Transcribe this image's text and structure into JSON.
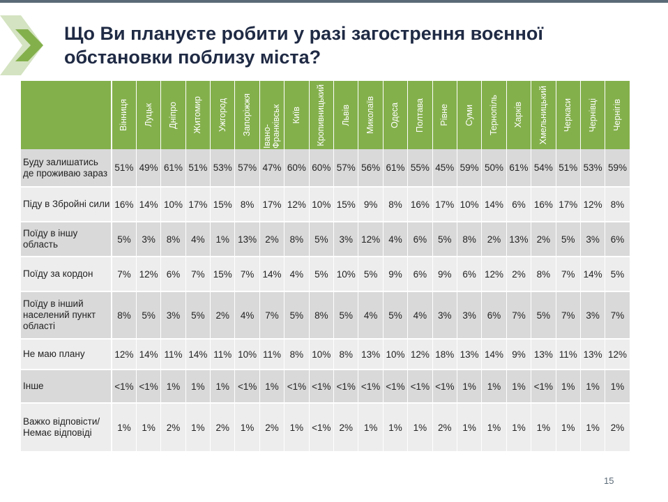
{
  "title": "Що Ви плануєте робити у разі загострення воєнної обстановки поблизу міста?",
  "accent_color": "#84b04c",
  "columns": [
    "Вінниця",
    "Луцьк",
    "Дніпро",
    "Житомир",
    "Ужгород",
    "Запоріжжя",
    "Івано-Франківськ",
    "Київ",
    "Кропивницький",
    "Львів",
    "Миколаїв",
    "Одеса",
    "Полтава",
    "Рівне",
    "Суми",
    "Тернопіль",
    "Харків",
    "Хмельницький",
    "Черкаси",
    "Чернівці",
    "Чернігів"
  ],
  "rows": [
    {
      "label": "Буду залишатись де проживаю зараз",
      "values": [
        "51%",
        "49%",
        "61%",
        "51%",
        "53%",
        "57%",
        "47%",
        "60%",
        "60%",
        "57%",
        "56%",
        "61%",
        "55%",
        "45%",
        "59%",
        "50%",
        "61%",
        "54%",
        "51%",
        "53%",
        "59%"
      ]
    },
    {
      "label": "Піду в Збройні сили",
      "values": [
        "16%",
        "14%",
        "10%",
        "17%",
        "15%",
        "8%",
        "17%",
        "12%",
        "10%",
        "15%",
        "9%",
        "8%",
        "16%",
        "17%",
        "10%",
        "14%",
        "6%",
        "16%",
        "17%",
        "12%",
        "8%"
      ]
    },
    {
      "label": "Поїду в іншу область",
      "values": [
        "5%",
        "3%",
        "8%",
        "4%",
        "1%",
        "13%",
        "2%",
        "8%",
        "5%",
        "3%",
        "12%",
        "4%",
        "6%",
        "5%",
        "8%",
        "2%",
        "13%",
        "2%",
        "5%",
        "3%",
        "6%"
      ]
    },
    {
      "label": "Поїду за кордон",
      "values": [
        "7%",
        "12%",
        "6%",
        "7%",
        "15%",
        "7%",
        "14%",
        "4%",
        "5%",
        "10%",
        "5%",
        "9%",
        "6%",
        "9%",
        "6%",
        "12%",
        "2%",
        "8%",
        "7%",
        "14%",
        "5%"
      ]
    },
    {
      "label": "Поїду в інший населений пункт області",
      "values": [
        "8%",
        "5%",
        "3%",
        "5%",
        "2%",
        "4%",
        "7%",
        "5%",
        "8%",
        "5%",
        "4%",
        "5%",
        "4%",
        "3%",
        "3%",
        "6%",
        "7%",
        "5%",
        "7%",
        "3%",
        "7%"
      ]
    },
    {
      "label": "Не маю плану",
      "values": [
        "12%",
        "14%",
        "11%",
        "14%",
        "11%",
        "10%",
        "11%",
        "8%",
        "10%",
        "8%",
        "13%",
        "10%",
        "12%",
        "18%",
        "13%",
        "14%",
        "9%",
        "13%",
        "11%",
        "13%",
        "12%"
      ]
    },
    {
      "label": "Інше",
      "values": [
        "<1%",
        "<1%",
        "1%",
        "1%",
        "1%",
        "<1%",
        "1%",
        "<1%",
        "<1%",
        "<1%",
        "<1%",
        "<1%",
        "<1%",
        "<1%",
        "1%",
        "1%",
        "1%",
        "<1%",
        "1%",
        "1%",
        "1%"
      ]
    },
    {
      "label": "Важко відповісти/Немає відповіді",
      "values": [
        "1%",
        "1%",
        "2%",
        "1%",
        "2%",
        "1%",
        "2%",
        "1%",
        "<1%",
        "2%",
        "1%",
        "1%",
        "1%",
        "2%",
        "1%",
        "1%",
        "1%",
        "1%",
        "1%",
        "1%",
        "2%"
      ]
    }
  ],
  "page_number": "15"
}
